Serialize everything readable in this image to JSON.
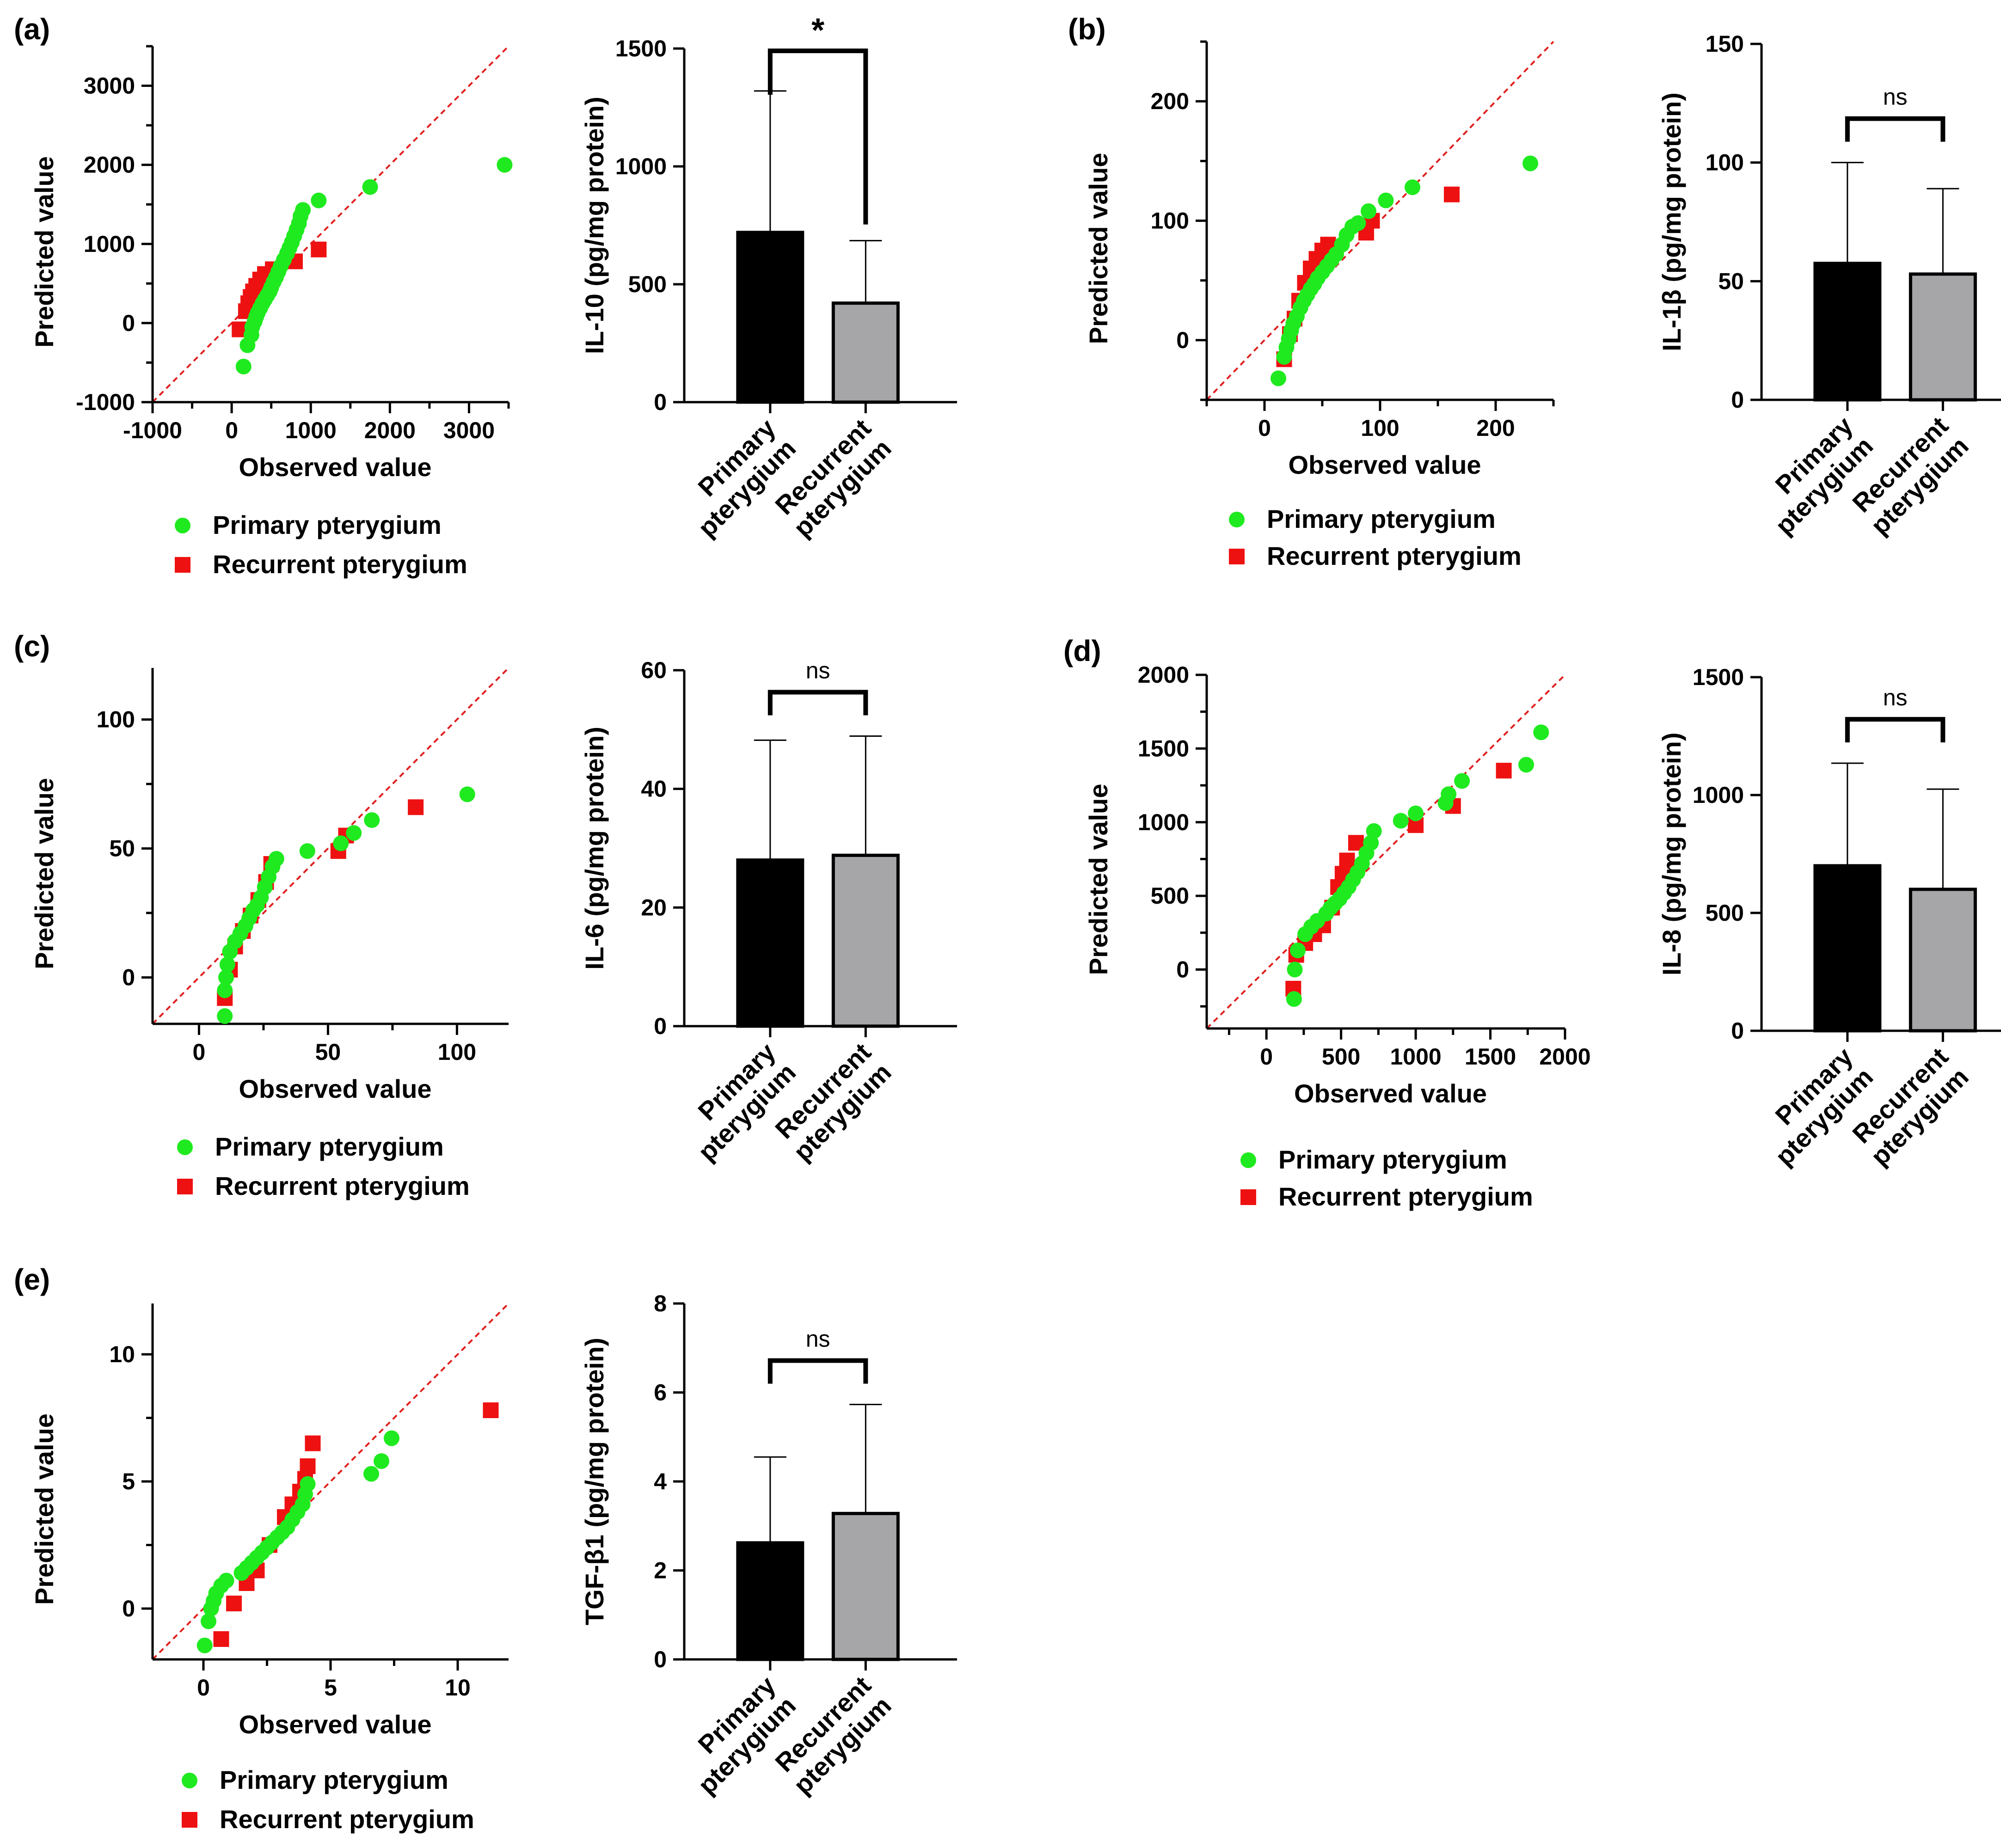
{
  "figure": {
    "legend": {
      "primary": "Primary pterygium",
      "recurrent": "Recurrent pterygium"
    }
  },
  "colors": {
    "primary": "#1fea1f",
    "recurrent": "#ee1111",
    "bar_primary": "#000000",
    "bar_recurrent": "#a6a6a8",
    "refline": "#e02020"
  },
  "chart_data": [
    {
      "id": "a-qq",
      "panel_label": "(a)",
      "type": "scatter",
      "xlabel": "Observed value",
      "ylabel": "Predicted value",
      "xlim": [
        -1000,
        3500
      ],
      "ylim": [
        -1000,
        3500
      ],
      "xticks": [
        -1000,
        0,
        1000,
        2000,
        3000
      ],
      "xtick_labels": [
        "-1000",
        "0",
        "1000",
        "2000",
        "3000"
      ],
      "yticks": [
        -1000,
        0,
        1000,
        2000,
        3000
      ],
      "ytick_labels": [
        "-1000",
        "0",
        "1000",
        "2000",
        "3000"
      ],
      "reference_line": "y = x",
      "series": [
        {
          "name": "Primary pterygium",
          "marker": "circle",
          "points": [
            [
              150,
              -550
            ],
            [
              200,
              -280
            ],
            [
              250,
              -150
            ],
            [
              260,
              -50
            ],
            [
              290,
              20
            ],
            [
              310,
              80
            ],
            [
              330,
              130
            ],
            [
              360,
              190
            ],
            [
              390,
              250
            ],
            [
              420,
              300
            ],
            [
              450,
              350
            ],
            [
              480,
              400
            ],
            [
              500,
              450
            ],
            [
              530,
              520
            ],
            [
              560,
              580
            ],
            [
              590,
              650
            ],
            [
              620,
              720
            ],
            [
              660,
              800
            ],
            [
              700,
              880
            ],
            [
              730,
              950
            ],
            [
              760,
              1020
            ],
            [
              790,
              1100
            ],
            [
              820,
              1180
            ],
            [
              850,
              1260
            ],
            [
              870,
              1350
            ],
            [
              900,
              1430
            ],
            [
              1100,
              1550
            ],
            [
              1750,
              1720
            ],
            [
              3450,
              2000
            ]
          ]
        },
        {
          "name": "Recurrent pterygium",
          "marker": "square",
          "points": [
            [
              100,
              -80
            ],
            [
              180,
              150
            ],
            [
              210,
              250
            ],
            [
              240,
              330
            ],
            [
              270,
              400
            ],
            [
              310,
              470
            ],
            [
              360,
              550
            ],
            [
              420,
              620
            ],
            [
              520,
              680
            ],
            [
              800,
              780
            ],
            [
              1100,
              930
            ]
          ]
        }
      ]
    },
    {
      "id": "a-bar",
      "type": "bar",
      "ylabel": "IL-10 (pg/mg protein)",
      "ylim": [
        0,
        1500
      ],
      "yticks": [
        0,
        500,
        1000,
        1500
      ],
      "ytick_labels": [
        "0",
        "500",
        "1000",
        "1500"
      ],
      "categories": [
        "Primary\npterygium",
        "Recurrent\npterygium"
      ],
      "values": [
        720,
        420
      ],
      "errors_upper": [
        1320,
        685
      ],
      "significance": "*"
    },
    {
      "id": "b-qq",
      "panel_label": "(b)",
      "type": "scatter",
      "xlabel": "Observed value",
      "ylabel": "Predicted value",
      "xlim": [
        -50,
        250
      ],
      "ylim": [
        -50,
        250
      ],
      "xticks": [
        0,
        100,
        200
      ],
      "xtick_labels": [
        "0",
        "100",
        "200"
      ],
      "yticks": [
        0,
        100,
        200
      ],
      "ytick_labels": [
        "0",
        "100",
        "200"
      ],
      "reference_line": "y = x",
      "series": [
        {
          "name": "Primary pterygium",
          "marker": "circle",
          "points": [
            [
              12,
              -32
            ],
            [
              17,
              -14
            ],
            [
              19,
              -6
            ],
            [
              21,
              1
            ],
            [
              23,
              8
            ],
            [
              25,
              14
            ],
            [
              28,
              20
            ],
            [
              31,
              27
            ],
            [
              34,
              33
            ],
            [
              37,
              38
            ],
            [
              40,
              43
            ],
            [
              43,
              47
            ],
            [
              46,
              52
            ],
            [
              50,
              57
            ],
            [
              54,
              62
            ],
            [
              58,
              67
            ],
            [
              62,
              72
            ],
            [
              67,
              80
            ],
            [
              71,
              88
            ],
            [
              76,
              95
            ],
            [
              81,
              98
            ],
            [
              90,
              108
            ],
            [
              105,
              117
            ],
            [
              128,
              128
            ],
            [
              230,
              148
            ]
          ]
        },
        {
          "name": "Recurrent pterygium",
          "marker": "square",
          "points": [
            [
              17,
              -16
            ],
            [
              22,
              5
            ],
            [
              26,
              18
            ],
            [
              30,
              33
            ],
            [
              35,
              48
            ],
            [
              40,
              60
            ],
            [
              45,
              68
            ],
            [
              50,
              75
            ],
            [
              55,
              80
            ],
            [
              88,
              90
            ],
            [
              93,
              100
            ],
            [
              162,
              122
            ]
          ]
        }
      ]
    },
    {
      "id": "b-bar",
      "type": "bar",
      "ylabel": "IL-1β (pg/mg protein)",
      "ylim": [
        0,
        150
      ],
      "yticks": [
        0,
        50,
        100,
        150
      ],
      "ytick_labels": [
        "0",
        "50",
        "100",
        "150"
      ],
      "categories": [
        "Primary\npterygium",
        "Recurrent\npterygium"
      ],
      "values": [
        57.5,
        53
      ],
      "errors_upper": [
        100,
        89
      ],
      "significance": "ns"
    },
    {
      "id": "c-qq",
      "panel_label": "(c)",
      "type": "scatter",
      "xlabel": "Observed value",
      "ylabel": "Predicted value",
      "xlim": [
        -18,
        120
      ],
      "ylim": [
        -18,
        120
      ],
      "xticks": [
        0,
        50,
        100
      ],
      "xtick_labels": [
        "0",
        "50",
        "100"
      ],
      "yticks": [
        0,
        50,
        100
      ],
      "ytick_labels": [
        "0",
        "50",
        "100"
      ],
      "reference_line": "y = x",
      "series": [
        {
          "name": "Primary pterygium",
          "marker": "circle",
          "points": [
            [
              10,
              -15
            ],
            [
              10,
              -5
            ],
            [
              10.5,
              0
            ],
            [
              11,
              5
            ],
            [
              12,
              10
            ],
            [
              14,
              14
            ],
            [
              16,
              17
            ],
            [
              18,
              20
            ],
            [
              19.5,
              23
            ],
            [
              21,
              26
            ],
            [
              22.5,
              28
            ],
            [
              24,
              31
            ],
            [
              25.5,
              35
            ],
            [
              27,
              39
            ],
            [
              28.5,
              43
            ],
            [
              30,
              46
            ],
            [
              42,
              49
            ],
            [
              55,
              52
            ],
            [
              60,
              56
            ],
            [
              67,
              61
            ],
            [
              104,
              71
            ]
          ]
        },
        {
          "name": "Recurrent pterygium",
          "marker": "square",
          "points": [
            [
              10,
              -8
            ],
            [
              12,
              3
            ],
            [
              14,
              12
            ],
            [
              17,
              18
            ],
            [
              20,
              24
            ],
            [
              23,
              30
            ],
            [
              26,
              37
            ],
            [
              28,
              44
            ],
            [
              54,
              49
            ],
            [
              57,
              55
            ],
            [
              84,
              66
            ]
          ]
        }
      ]
    },
    {
      "id": "c-bar",
      "type": "bar",
      "ylabel": "IL-6 (pg/mg protein)",
      "ylim": [
        0,
        60
      ],
      "yticks": [
        0,
        20,
        40,
        60
      ],
      "ytick_labels": [
        "0",
        "20",
        "40",
        "60"
      ],
      "categories": [
        "Primary\npterygium",
        "Recurrent\npterygium"
      ],
      "values": [
        28,
        28.8
      ],
      "errors_upper": [
        48.2,
        48.9
      ],
      "significance": "ns"
    },
    {
      "id": "d-qq",
      "panel_label": "(d)",
      "type": "scatter",
      "xlabel": "Observed value",
      "ylabel": "Predicted value",
      "xlim": [
        -400,
        2000
      ],
      "ylim": [
        -400,
        2000
      ],
      "xticks": [
        0,
        500,
        1000,
        1500,
        2000
      ],
      "xtick_labels": [
        "0",
        "500",
        "1000",
        "1500",
        "2000"
      ],
      "yticks": [
        0,
        500,
        1000,
        1500,
        2000
      ],
      "ytick_labels": [
        "0",
        "500",
        "1000",
        "1500",
        "2000"
      ],
      "reference_line": "y = x",
      "series": [
        {
          "name": "Primary pterygium",
          "marker": "circle",
          "points": [
            [
              185,
              -200
            ],
            [
              190,
              0
            ],
            [
              210,
              130
            ],
            [
              260,
              240
            ],
            [
              300,
              290
            ],
            [
              340,
              330
            ],
            [
              400,
              380
            ],
            [
              430,
              420
            ],
            [
              460,
              450
            ],
            [
              490,
              480
            ],
            [
              520,
              520
            ],
            [
              550,
              560
            ],
            [
              580,
              610
            ],
            [
              610,
              660
            ],
            [
              640,
              720
            ],
            [
              670,
              790
            ],
            [
              700,
              860
            ],
            [
              720,
              940
            ],
            [
              900,
              1010
            ],
            [
              1000,
              1060
            ],
            [
              1200,
              1130
            ],
            [
              1220,
              1190
            ],
            [
              1310,
              1280
            ],
            [
              1740,
              1390
            ],
            [
              1840,
              1610
            ]
          ]
        },
        {
          "name": "Recurrent pterygium",
          "marker": "square",
          "points": [
            [
              180,
              -130
            ],
            [
              200,
              100
            ],
            [
              260,
              180
            ],
            [
              320,
              240
            ],
            [
              380,
              300
            ],
            [
              440,
              420
            ],
            [
              480,
              560
            ],
            [
              510,
              650
            ],
            [
              540,
              740
            ],
            [
              600,
              860
            ],
            [
              1000,
              980
            ],
            [
              1250,
              1110
            ],
            [
              1590,
              1350
            ]
          ]
        }
      ]
    },
    {
      "id": "d-bar",
      "type": "bar",
      "ylabel": "IL-8 (pg/mg protein)",
      "ylim": [
        0,
        1500
      ],
      "yticks": [
        0,
        500,
        1000,
        1500
      ],
      "ytick_labels": [
        "0",
        "500",
        "1000",
        "1500"
      ],
      "categories": [
        "Primary\npterygium",
        "Recurrent\npterygium"
      ],
      "values": [
        700,
        600
      ],
      "errors_upper": [
        1135,
        1025
      ],
      "significance": "ns"
    },
    {
      "id": "e-qq",
      "panel_label": "(e)",
      "type": "scatter",
      "xlabel": "Observed value",
      "ylabel": "Predicted value",
      "xlim": [
        -2,
        12
      ],
      "ylim": [
        -2,
        12
      ],
      "xticks": [
        0,
        5,
        10
      ],
      "xtick_labels": [
        "0",
        "5",
        "10"
      ],
      "yticks": [
        0,
        5,
        10
      ],
      "ytick_labels": [
        "0",
        "5",
        "10"
      ],
      "reference_line": "y = x",
      "series": [
        {
          "name": "Primary pterygium",
          "marker": "circle",
          "points": [
            [
              0.05,
              -1.45
            ],
            [
              0.2,
              -0.5
            ],
            [
              0.3,
              0
            ],
            [
              0.4,
              0.3
            ],
            [
              0.5,
              0.6
            ],
            [
              0.7,
              0.9
            ],
            [
              0.9,
              1.1
            ],
            [
              1.5,
              1.4
            ],
            [
              1.7,
              1.6
            ],
            [
              1.9,
              1.8
            ],
            [
              2.1,
              2.0
            ],
            [
              2.3,
              2.2
            ],
            [
              2.5,
              2.4
            ],
            [
              2.7,
              2.6
            ],
            [
              2.9,
              2.8
            ],
            [
              3.1,
              3.0
            ],
            [
              3.3,
              3.2
            ],
            [
              3.5,
              3.5
            ],
            [
              3.7,
              3.8
            ],
            [
              3.9,
              4.1
            ],
            [
              4.0,
              4.5
            ],
            [
              4.1,
              4.9
            ],
            [
              6.6,
              5.3
            ],
            [
              7.0,
              5.8
            ],
            [
              7.4,
              6.7
            ]
          ]
        },
        {
          "name": "Recurrent pterygium",
          "marker": "square",
          "points": [
            [
              0.7,
              -1.2
            ],
            [
              1.2,
              0.2
            ],
            [
              1.7,
              1.0
            ],
            [
              2.1,
              1.5
            ],
            [
              2.6,
              2.5
            ],
            [
              3.2,
              3.6
            ],
            [
              3.5,
              4.1
            ],
            [
              3.8,
              4.6
            ],
            [
              4.0,
              5.1
            ],
            [
              4.1,
              5.6
            ],
            [
              4.3,
              6.5
            ],
            [
              11.3,
              7.8
            ]
          ]
        }
      ]
    },
    {
      "id": "e-bar",
      "type": "bar",
      "ylabel": "TGF-β1 (pg/mg protein)",
      "ylim": [
        0,
        8
      ],
      "yticks": [
        0,
        2,
        4,
        6,
        8
      ],
      "ytick_labels": [
        "0",
        "2",
        "4",
        "6",
        "8"
      ],
      "categories": [
        "Primary\npterygium",
        "Recurrent\npterygium"
      ],
      "values": [
        2.62,
        3.28
      ],
      "errors_upper": [
        4.55,
        5.73
      ],
      "significance": "ns"
    }
  ]
}
